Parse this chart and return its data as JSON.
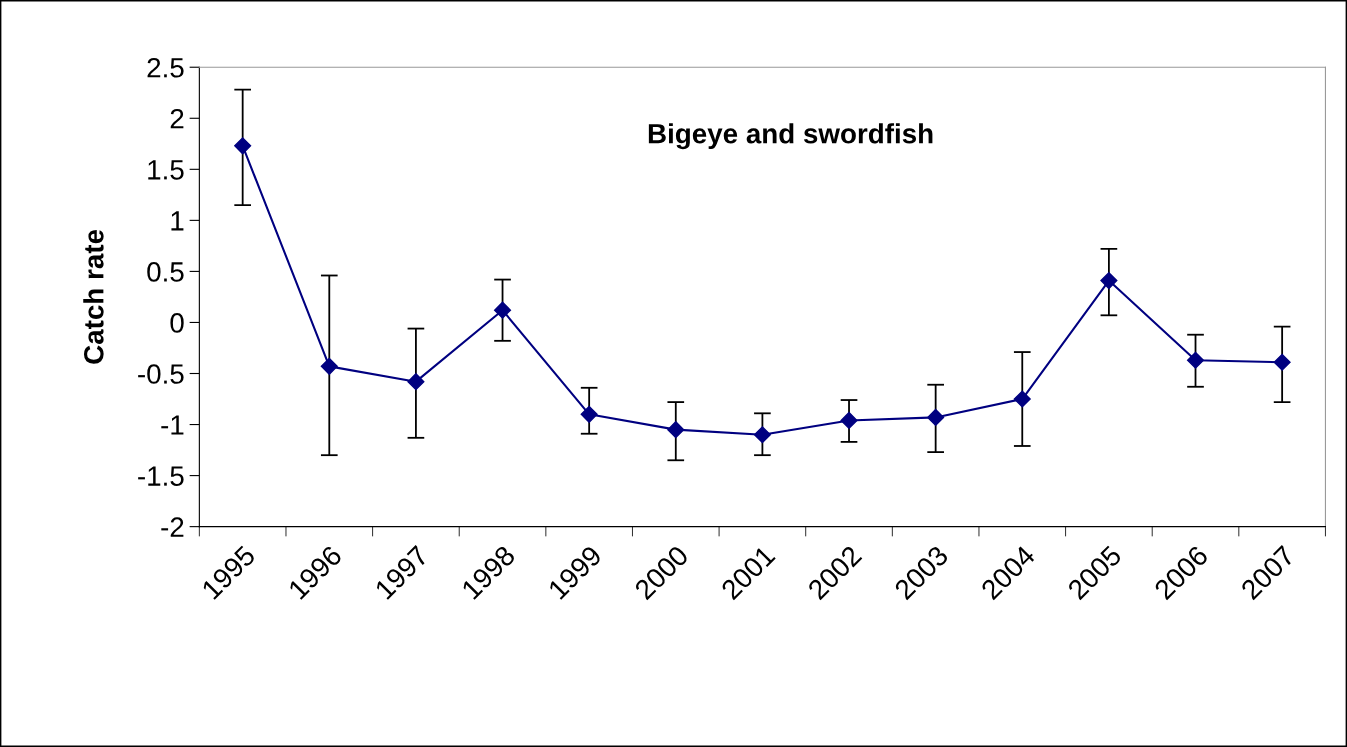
{
  "chart_data": {
    "type": "line",
    "title": "Bigeye and swordfish",
    "ylabel": "Catch rate",
    "categories": [
      "1995",
      "1996",
      "1997",
      "1998",
      "1999",
      "2000",
      "2001",
      "2002",
      "2003",
      "2004",
      "2005",
      "2006",
      "2007"
    ],
    "series": [
      {
        "color": "#000080",
        "values": [
          1.73,
          -0.43,
          -0.58,
          0.12,
          -0.9,
          -1.05,
          -1.1,
          -0.96,
          -0.93,
          -0.75,
          0.41,
          -0.37,
          -0.39
        ],
        "errors": [
          [
            1.15,
            2.28
          ],
          [
            -1.3,
            0.46
          ],
          [
            -1.13,
            -0.06
          ],
          [
            -0.18,
            0.42
          ],
          [
            -1.09,
            -0.64
          ],
          [
            -1.35,
            -0.78
          ],
          [
            -1.3,
            -0.89
          ],
          [
            -1.17,
            -0.76
          ],
          [
            -1.27,
            -0.61
          ],
          [
            -1.21,
            -0.29
          ],
          [
            0.07,
            0.72
          ],
          [
            -0.63,
            -0.12
          ],
          [
            -0.78,
            -0.04
          ]
        ]
      }
    ],
    "ylim": [
      -2,
      2.5
    ],
    "yticks": [
      -2,
      -1.5,
      -1,
      -0.5,
      0,
      0.5,
      1,
      1.5,
      2,
      2.5
    ],
    "marker": "diamond",
    "line_style": "solid",
    "grid": false
  }
}
